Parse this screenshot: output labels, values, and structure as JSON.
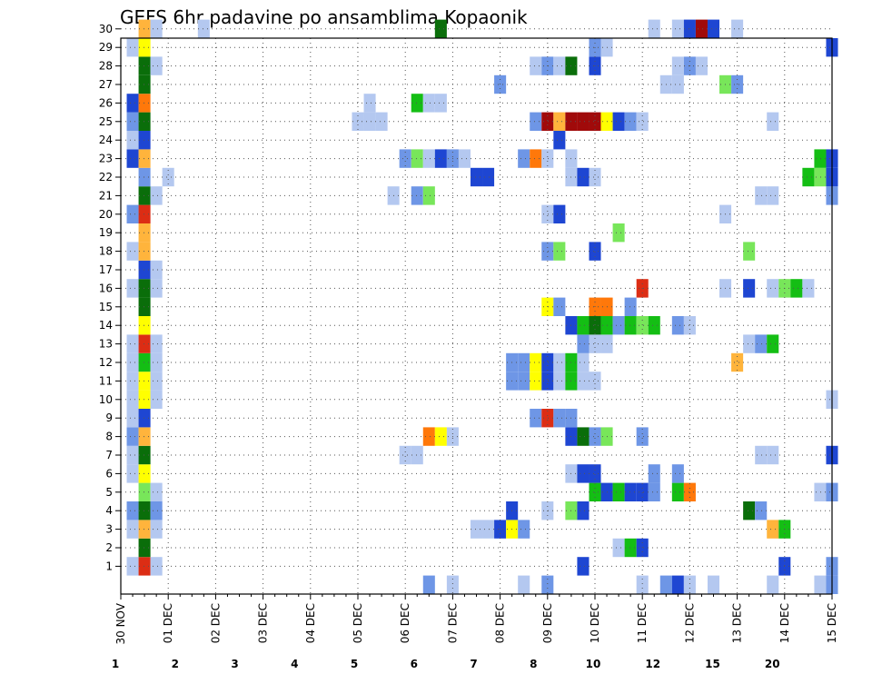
{
  "chart_data": {
    "type": "heatmap",
    "title": "GEFS 6hr padavine po ansamblima Kopaonik",
    "y_categories": [
      "1",
      "2",
      "3",
      "4",
      "5",
      "6",
      "7",
      "8",
      "9",
      "10",
      "11",
      "12",
      "13",
      "14",
      "15",
      "16",
      "17",
      "18",
      "19",
      "20",
      "21",
      "22",
      "23",
      "24",
      "25",
      "26",
      "27",
      "28",
      "29",
      "30"
    ],
    "x_tick_labels": [
      "30 NOV",
      "01 DEC",
      "02 DEC",
      "03 DEC",
      "04 DEC",
      "05 DEC",
      "06 DEC",
      "07 DEC",
      "08 DEC",
      "09 DEC",
      "10 DEC",
      "11 DEC",
      "12 DEC",
      "13 DEC",
      "14 DEC",
      "15 DEC"
    ],
    "xlim_days": [
      0,
      15
    ],
    "time_step": "6hr",
    "grid": "dotted",
    "legend": "colorbar-bottom",
    "colorbar": {
      "labels": [
        "1",
        "2",
        "3",
        "4",
        "5",
        "6",
        "7",
        "8",
        "10",
        "12",
        "15",
        "20"
      ],
      "colors": [
        "#b4c8f0",
        "#6e96e6",
        "#1e46d2",
        "#78e65a",
        "#14be14",
        "#0a6e0a",
        "#ffff00",
        "#ffb43c",
        "#ff780a",
        "#dc2d14",
        "#a00a0a",
        "#6e0000"
      ]
    },
    "cells": [
      [
        1,
        0.25,
        "#b4c8f0"
      ],
      [
        1,
        0.5,
        "#dc2d14"
      ],
      [
        1,
        0.75,
        "#b4c8f0"
      ],
      [
        1,
        9.75,
        "#1e46d2"
      ],
      [
        1,
        14.0,
        "#1e46d2"
      ],
      [
        1,
        15.0,
        "#6e96e6"
      ],
      [
        2,
        0.5,
        "#0a6e0a"
      ],
      [
        2,
        10.5,
        "#b4c8f0"
      ],
      [
        2,
        10.75,
        "#14be14"
      ],
      [
        2,
        11.0,
        "#1e46d2"
      ],
      [
        3,
        0.25,
        "#b4c8f0"
      ],
      [
        3,
        0.5,
        "#ffb43c"
      ],
      [
        3,
        0.75,
        "#b4c8f0"
      ],
      [
        3,
        7.5,
        "#b4c8f0"
      ],
      [
        3,
        7.75,
        "#b4c8f0"
      ],
      [
        3,
        8.0,
        "#1e46d2"
      ],
      [
        3,
        8.25,
        "#ffff00"
      ],
      [
        3,
        8.5,
        "#6e96e6"
      ],
      [
        3,
        13.75,
        "#ffb43c"
      ],
      [
        3,
        14.0,
        "#14be14"
      ],
      [
        4,
        0.25,
        "#6e96e6"
      ],
      [
        4,
        0.5,
        "#0a6e0a"
      ],
      [
        4,
        0.75,
        "#6e96e6"
      ],
      [
        4,
        8.25,
        "#1e46d2"
      ],
      [
        4,
        9.0,
        "#b4c8f0"
      ],
      [
        4,
        9.5,
        "#78e65a"
      ],
      [
        4,
        9.75,
        "#1e46d2"
      ],
      [
        4,
        13.25,
        "#0a6e0a"
      ],
      [
        4,
        13.5,
        "#6e96e6"
      ],
      [
        5,
        0.5,
        "#78e65a"
      ],
      [
        5,
        0.75,
        "#b4c8f0"
      ],
      [
        5,
        10.0,
        "#14be14"
      ],
      [
        5,
        10.25,
        "#1e46d2"
      ],
      [
        5,
        10.5,
        "#14be14"
      ],
      [
        5,
        10.75,
        "#1e46d2"
      ],
      [
        5,
        11.0,
        "#1e46d2"
      ],
      [
        5,
        11.25,
        "#6e96e6"
      ],
      [
        5,
        11.75,
        "#14be14"
      ],
      [
        5,
        12.0,
        "#ff780a"
      ],
      [
        5,
        14.75,
        "#b4c8f0"
      ],
      [
        5,
        15.0,
        "#6e96e6"
      ],
      [
        6,
        0.25,
        "#b4c8f0"
      ],
      [
        6,
        0.5,
        "#ffff00"
      ],
      [
        6,
        9.5,
        "#b4c8f0"
      ],
      [
        6,
        9.75,
        "#1e46d2"
      ],
      [
        6,
        10.0,
        "#1e46d2"
      ],
      [
        6,
        11.25,
        "#6e96e6"
      ],
      [
        6,
        11.75,
        "#6e96e6"
      ],
      [
        7,
        0.25,
        "#b4c8f0"
      ],
      [
        7,
        0.5,
        "#0a6e0a"
      ],
      [
        7,
        6.0,
        "#b4c8f0"
      ],
      [
        7,
        6.25,
        "#b4c8f0"
      ],
      [
        7,
        13.5,
        "#b4c8f0"
      ],
      [
        7,
        13.75,
        "#b4c8f0"
      ],
      [
        7,
        15.0,
        "#1e46d2"
      ],
      [
        8,
        0.25,
        "#6e96e6"
      ],
      [
        8,
        0.5,
        "#ffb43c"
      ],
      [
        8,
        6.5,
        "#ff780a"
      ],
      [
        8,
        6.75,
        "#ffff00"
      ],
      [
        8,
        7.0,
        "#b4c8f0"
      ],
      [
        8,
        9.5,
        "#1e46d2"
      ],
      [
        8,
        9.75,
        "#0a6e0a"
      ],
      [
        8,
        10.0,
        "#6e96e6"
      ],
      [
        8,
        10.25,
        "#78e65a"
      ],
      [
        8,
        11.0,
        "#6e96e6"
      ],
      [
        9,
        0.25,
        "#b4c8f0"
      ],
      [
        9,
        0.5,
        "#1e46d2"
      ],
      [
        9,
        8.75,
        "#6e96e6"
      ],
      [
        9,
        9.0,
        "#dc2d14"
      ],
      [
        9,
        9.25,
        "#6e96e6"
      ],
      [
        9,
        9.5,
        "#6e96e6"
      ],
      [
        10,
        0.25,
        "#b4c8f0"
      ],
      [
        10,
        0.5,
        "#ffff00"
      ],
      [
        10,
        0.75,
        "#b4c8f0"
      ],
      [
        10,
        15.0,
        "#b4c8f0"
      ],
      [
        11,
        0.25,
        "#b4c8f0"
      ],
      [
        11,
        0.5,
        "#ffff00"
      ],
      [
        11,
        0.75,
        "#b4c8f0"
      ],
      [
        11,
        8.25,
        "#6e96e6"
      ],
      [
        11,
        8.5,
        "#6e96e6"
      ],
      [
        11,
        8.75,
        "#ffff00"
      ],
      [
        11,
        9.0,
        "#1e46d2"
      ],
      [
        11,
        9.25,
        "#b4c8f0"
      ],
      [
        11,
        9.5,
        "#14be14"
      ],
      [
        11,
        9.75,
        "#b4c8f0"
      ],
      [
        11,
        10.0,
        "#b4c8f0"
      ],
      [
        12,
        0.25,
        "#b4c8f0"
      ],
      [
        12,
        0.5,
        "#14be14"
      ],
      [
        12,
        0.75,
        "#b4c8f0"
      ],
      [
        12,
        8.25,
        "#6e96e6"
      ],
      [
        12,
        8.5,
        "#6e96e6"
      ],
      [
        12,
        8.75,
        "#ffff00"
      ],
      [
        12,
        9.0,
        "#1e46d2"
      ],
      [
        12,
        9.25,
        "#b4c8f0"
      ],
      [
        12,
        9.5,
        "#14be14"
      ],
      [
        12,
        9.75,
        "#b4c8f0"
      ],
      [
        12,
        13.0,
        "#ffb43c"
      ],
      [
        13,
        0.25,
        "#b4c8f0"
      ],
      [
        13,
        0.5,
        "#dc2d14"
      ],
      [
        13,
        0.75,
        "#b4c8f0"
      ],
      [
        13,
        9.75,
        "#6e96e6"
      ],
      [
        13,
        10.0,
        "#b4c8f0"
      ],
      [
        13,
        10.25,
        "#b4c8f0"
      ],
      [
        13,
        13.25,
        "#b4c8f0"
      ],
      [
        13,
        13.5,
        "#6e96e6"
      ],
      [
        13,
        13.75,
        "#14be14"
      ],
      [
        14,
        0.5,
        "#ffff00"
      ],
      [
        14,
        9.5,
        "#1e46d2"
      ],
      [
        14,
        9.75,
        "#14be14"
      ],
      [
        14,
        10.0,
        "#0a6e0a"
      ],
      [
        14,
        10.25,
        "#14be14"
      ],
      [
        14,
        10.5,
        "#6e96e6"
      ],
      [
        14,
        10.75,
        "#14be14"
      ],
      [
        14,
        11.0,
        "#78e65a"
      ],
      [
        14,
        11.25,
        "#14be14"
      ],
      [
        14,
        11.75,
        "#6e96e6"
      ],
      [
        14,
        12.0,
        "#b4c8f0"
      ],
      [
        15,
        0.5,
        "#0a6e0a"
      ],
      [
        15,
        9.0,
        "#ffff00"
      ],
      [
        15,
        9.25,
        "#6e96e6"
      ],
      [
        15,
        10.0,
        "#ff780a"
      ],
      [
        15,
        10.25,
        "#ff780a"
      ],
      [
        15,
        10.75,
        "#6e96e6"
      ],
      [
        16,
        0.25,
        "#b4c8f0"
      ],
      [
        16,
        0.5,
        "#0a6e0a"
      ],
      [
        16,
        0.75,
        "#b4c8f0"
      ],
      [
        16,
        11.0,
        "#dc2d14"
      ],
      [
        16,
        12.75,
        "#b4c8f0"
      ],
      [
        16,
        13.25,
        "#1e46d2"
      ],
      [
        16,
        13.75,
        "#b4c8f0"
      ],
      [
        16,
        14.0,
        "#78e65a"
      ],
      [
        16,
        14.25,
        "#14be14"
      ],
      [
        16,
        14.5,
        "#b4c8f0"
      ],
      [
        17,
        0.5,
        "#1e46d2"
      ],
      [
        17,
        0.75,
        "#b4c8f0"
      ],
      [
        18,
        0.25,
        "#b4c8f0"
      ],
      [
        18,
        0.5,
        "#ffb43c"
      ],
      [
        18,
        9.0,
        "#6e96e6"
      ],
      [
        18,
        9.25,
        "#78e65a"
      ],
      [
        18,
        10.0,
        "#1e46d2"
      ],
      [
        18,
        13.25,
        "#78e65a"
      ],
      [
        19,
        0.5,
        "#ffb43c"
      ],
      [
        19,
        10.5,
        "#78e65a"
      ],
      [
        20,
        0.25,
        "#6e96e6"
      ],
      [
        20,
        0.5,
        "#dc2d14"
      ],
      [
        20,
        9.0,
        "#b4c8f0"
      ],
      [
        20,
        9.25,
        "#1e46d2"
      ],
      [
        20,
        12.75,
        "#b4c8f0"
      ],
      [
        21,
        0.5,
        "#0a6e0a"
      ],
      [
        21,
        0.75,
        "#b4c8f0"
      ],
      [
        21,
        5.75,
        "#b4c8f0"
      ],
      [
        21,
        6.25,
        "#6e96e6"
      ],
      [
        21,
        6.5,
        "#78e65a"
      ],
      [
        21,
        13.5,
        "#b4c8f0"
      ],
      [
        21,
        13.75,
        "#b4c8f0"
      ],
      [
        21,
        15.0,
        "#6e96e6"
      ],
      [
        22,
        0.5,
        "#6e96e6"
      ],
      [
        22,
        1.0,
        "#b4c8f0"
      ],
      [
        22,
        7.5,
        "#1e46d2"
      ],
      [
        22,
        7.75,
        "#1e46d2"
      ],
      [
        22,
        9.5,
        "#b4c8f0"
      ],
      [
        22,
        9.75,
        "#1e46d2"
      ],
      [
        22,
        10.0,
        "#b4c8f0"
      ],
      [
        22,
        14.5,
        "#14be14"
      ],
      [
        22,
        14.75,
        "#78e65a"
      ],
      [
        22,
        15.0,
        "#1e46d2"
      ],
      [
        23,
        0.25,
        "#1e46d2"
      ],
      [
        23,
        0.5,
        "#ffb43c"
      ],
      [
        23,
        6.0,
        "#6e96e6"
      ],
      [
        23,
        6.25,
        "#78e65a"
      ],
      [
        23,
        6.5,
        "#b4c8f0"
      ],
      [
        23,
        6.75,
        "#1e46d2"
      ],
      [
        23,
        7.0,
        "#6e96e6"
      ],
      [
        23,
        7.25,
        "#b4c8f0"
      ],
      [
        23,
        8.5,
        "#6e96e6"
      ],
      [
        23,
        8.75,
        "#ff780a"
      ],
      [
        23,
        9.0,
        "#b4c8f0"
      ],
      [
        23,
        9.5,
        "#b4c8f0"
      ],
      [
        23,
        14.75,
        "#14be14"
      ],
      [
        23,
        15.0,
        "#1e46d2"
      ],
      [
        24,
        0.25,
        "#b4c8f0"
      ],
      [
        24,
        0.5,
        "#1e46d2"
      ],
      [
        24,
        9.25,
        "#1e46d2"
      ],
      [
        25,
        0.25,
        "#6e96e6"
      ],
      [
        25,
        0.5,
        "#0a6e0a"
      ],
      [
        25,
        5.0,
        "#b4c8f0"
      ],
      [
        25,
        5.25,
        "#b4c8f0"
      ],
      [
        25,
        5.5,
        "#b4c8f0"
      ],
      [
        25,
        8.75,
        "#6e96e6"
      ],
      [
        25,
        9.0,
        "#a00a0a"
      ],
      [
        25,
        9.25,
        "#ffb43c"
      ],
      [
        25,
        9.5,
        "#a00a0a"
      ],
      [
        25,
        9.75,
        "#a00a0a"
      ],
      [
        25,
        10.0,
        "#a00a0a"
      ],
      [
        25,
        10.25,
        "#ffff00"
      ],
      [
        25,
        10.5,
        "#1e46d2"
      ],
      [
        25,
        10.75,
        "#6e96e6"
      ],
      [
        25,
        11.0,
        "#b4c8f0"
      ],
      [
        25,
        13.75,
        "#b4c8f0"
      ],
      [
        26,
        0.25,
        "#1e46d2"
      ],
      [
        26,
        0.5,
        "#ff780a"
      ],
      [
        26,
        5.25,
        "#b4c8f0"
      ],
      [
        26,
        6.25,
        "#14be14"
      ],
      [
        26,
        6.5,
        "#b4c8f0"
      ],
      [
        26,
        6.75,
        "#b4c8f0"
      ],
      [
        27,
        0.5,
        "#0a6e0a"
      ],
      [
        27,
        8.0,
        "#6e96e6"
      ],
      [
        27,
        11.5,
        "#b4c8f0"
      ],
      [
        27,
        11.75,
        "#b4c8f0"
      ],
      [
        27,
        12.75,
        "#78e65a"
      ],
      [
        27,
        13.0,
        "#6e96e6"
      ],
      [
        28,
        0.5,
        "#0a6e0a"
      ],
      [
        28,
        0.75,
        "#b4c8f0"
      ],
      [
        28,
        8.75,
        "#b4c8f0"
      ],
      [
        28,
        9.0,
        "#6e96e6"
      ],
      [
        28,
        9.25,
        "#b4c8f0"
      ],
      [
        28,
        9.5,
        "#0a6e0a"
      ],
      [
        28,
        10.0,
        "#1e46d2"
      ],
      [
        28,
        11.75,
        "#b4c8f0"
      ],
      [
        28,
        12.0,
        "#6e96e6"
      ],
      [
        28,
        12.25,
        "#b4c8f0"
      ],
      [
        29,
        0.25,
        "#b4c8f0"
      ],
      [
        29,
        0.5,
        "#ffff00"
      ],
      [
        29,
        10.0,
        "#6e96e6"
      ],
      [
        29,
        10.25,
        "#b4c8f0"
      ],
      [
        29,
        15.0,
        "#1e46d2"
      ],
      [
        30,
        0.5,
        "#ffb43c"
      ],
      [
        30,
        0.75,
        "#b4c8f0"
      ],
      [
        30,
        1.75,
        "#b4c8f0"
      ],
      [
        30,
        6.75,
        "#0a6e0a"
      ],
      [
        30,
        11.25,
        "#b4c8f0"
      ],
      [
        30,
        11.75,
        "#b4c8f0"
      ],
      [
        30,
        12.0,
        "#1e46d2"
      ],
      [
        30,
        12.25,
        "#a00a0a"
      ],
      [
        30,
        12.5,
        "#1e46d2"
      ],
      [
        30,
        13.0,
        "#b4c8f0"
      ],
      [
        0,
        6.5,
        "#6e96e6"
      ],
      [
        0,
        7.0,
        "#b4c8f0"
      ],
      [
        0,
        8.5,
        "#b4c8f0"
      ],
      [
        0,
        9.0,
        "#6e96e6"
      ],
      [
        0,
        11.0,
        "#b4c8f0"
      ],
      [
        0,
        11.5,
        "#6e96e6"
      ],
      [
        0,
        11.75,
        "#1e46d2"
      ],
      [
        0,
        12.0,
        "#b4c8f0"
      ],
      [
        0,
        12.5,
        "#b4c8f0"
      ],
      [
        0,
        13.75,
        "#b4c8f0"
      ],
      [
        0,
        14.75,
        "#b4c8f0"
      ],
      [
        0,
        15.0,
        "#6e96e6"
      ]
    ]
  }
}
